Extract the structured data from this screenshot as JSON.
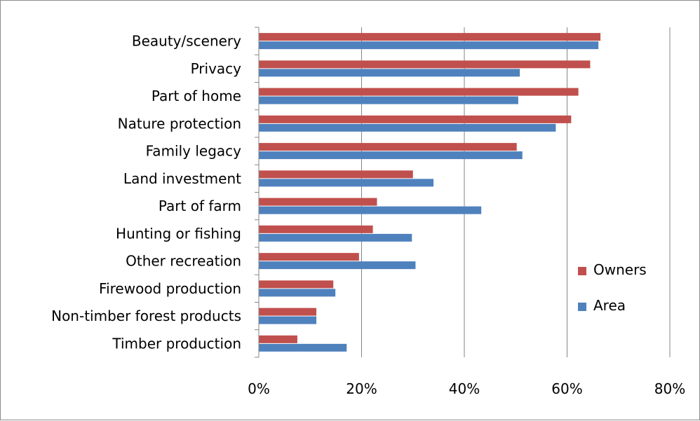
{
  "chart_data": {
    "type": "bar",
    "orientation": "horizontal",
    "categories": [
      "Beauty/scenery",
      "Privacy",
      "Part of home",
      "Nature protection",
      "Family legacy",
      "Land investment",
      "Part of farm",
      "Hunting or fishing",
      "Other recreation",
      "Firewood production",
      "Non-timber forest products",
      "Timber production"
    ],
    "series": [
      {
        "name": "Owners",
        "color": "#c0504d",
        "values": [
          0.665,
          0.645,
          0.622,
          0.608,
          0.502,
          0.3,
          0.23,
          0.222,
          0.195,
          0.145,
          0.112,
          0.075
        ]
      },
      {
        "name": "Area",
        "color": "#4f81bd",
        "values": [
          0.661,
          0.508,
          0.505,
          0.578,
          0.513,
          0.34,
          0.433,
          0.298,
          0.305,
          0.149,
          0.112,
          0.171
        ]
      }
    ],
    "xlim": [
      0,
      0.8
    ],
    "ticks": [
      {
        "value": 0,
        "label": "0%"
      },
      {
        "value": 0.2,
        "label": "20%"
      },
      {
        "value": 0.4,
        "label": "40%"
      },
      {
        "value": 0.6,
        "label": "60%"
      },
      {
        "value": 0.8,
        "label": "80%"
      }
    ],
    "grid": true,
    "legend_position": "right",
    "xlabel": "",
    "ylabel": "",
    "title": ""
  }
}
